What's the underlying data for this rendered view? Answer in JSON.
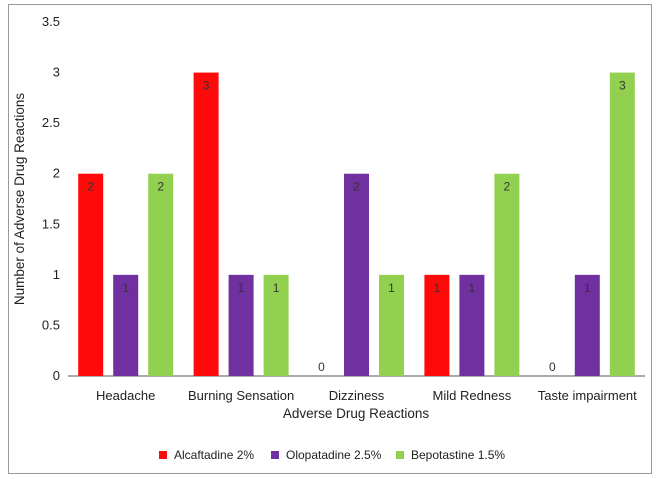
{
  "chart_data": {
    "type": "bar",
    "categories": [
      "Headache",
      "Burning Sensation",
      "Dizziness",
      "Mild Redness",
      "Taste impairment"
    ],
    "series": [
      {
        "name": "Alcaftadine 2%",
        "color": "#ff0a0a",
        "values": [
          2,
          3,
          0,
          1,
          0
        ]
      },
      {
        "name": "Olopatadine 2.5%",
        "color": "#7030a0",
        "values": [
          1,
          1,
          2,
          1,
          1
        ]
      },
      {
        "name": "Bepotastine 1.5%",
        "color": "#92d050",
        "values": [
          2,
          1,
          1,
          2,
          3
        ]
      }
    ],
    "data_labels": [
      [
        "2",
        "3",
        "0",
        "1",
        "0"
      ],
      [
        "1",
        "1",
        "2",
        "1",
        "1"
      ],
      [
        "2",
        "1",
        "1",
        "2",
        "3"
      ]
    ],
    "xlabel": "Adverse Drug Reactions",
    "ylabel": "Number of Adverse Drug Reactions",
    "ylim": [
      0,
      3.5
    ],
    "yticks": [
      "0",
      "0.5",
      "1",
      "1.5",
      "2",
      "2.5",
      "3",
      "3.5"
    ],
    "grid": false,
    "legend_position": "bottom"
  }
}
